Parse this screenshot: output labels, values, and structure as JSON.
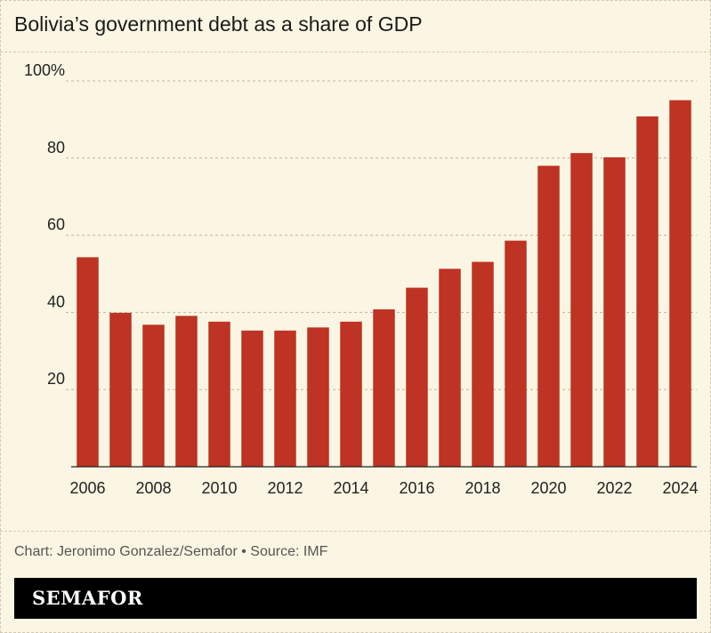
{
  "title": "Bolivia’s government debt as a share of GDP",
  "credit": "Chart: Jeronimo Gonzalez/Semafor • Source: IMF",
  "brand": "SEMAFOR",
  "colors": {
    "bar": "#be3323",
    "background": "#faf6e3",
    "grid": "#b9b5a0",
    "brand_bar": "#000000"
  },
  "chart_data": {
    "type": "bar",
    "categories": [
      "2006",
      "2007",
      "2008",
      "2009",
      "2010",
      "2011",
      "2012",
      "2013",
      "2014",
      "2015",
      "2016",
      "2017",
      "2018",
      "2019",
      "2020",
      "2021",
      "2022",
      "2023",
      "2024"
    ],
    "values": [
      54.3,
      39.9,
      36.8,
      39.1,
      37.6,
      35.3,
      35.3,
      36.1,
      37.6,
      40.8,
      46.4,
      51.3,
      53.1,
      58.6,
      78.0,
      81.3,
      80.2,
      90.8,
      95.0
    ],
    "x_tick_labels": [
      "2006",
      "2008",
      "2010",
      "2012",
      "2014",
      "2016",
      "2018",
      "2020",
      "2022",
      "2024"
    ],
    "y_ticks": [
      20,
      40,
      60,
      80,
      100
    ],
    "y_tick_labels": [
      "20",
      "40",
      "60",
      "80",
      "100%"
    ],
    "ylim": [
      0,
      100
    ],
    "grid": true,
    "xlabel": "",
    "ylabel": ""
  }
}
